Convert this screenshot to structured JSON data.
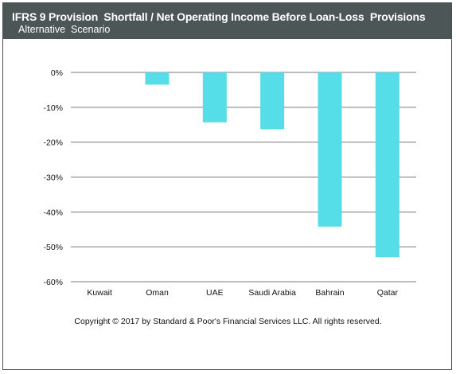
{
  "header": {
    "title": "IFRS 9 Provision  Shortfall / Net Operating Income Before Loan-Loss  Provisions",
    "subtitle": "Alternative  Scenario"
  },
  "footer": {
    "copyright": "Copyright © 2017 by Standard & Poor's Financial Services LLC. All rights reserved."
  },
  "colors": {
    "bar": "#55dde8",
    "header_bg": "#4d5657",
    "gridline": "#7a7a7a"
  },
  "chart_data": {
    "type": "bar",
    "categories": [
      "Kuwait",
      "Oman",
      "UAE",
      "Saudi Arabia",
      "Bahrain",
      "Qatar"
    ],
    "values": [
      0,
      -3.5,
      -14.3,
      -16.3,
      -44.2,
      -53.0
    ],
    "yticks": [
      0,
      -10,
      -20,
      -30,
      -40,
      -50,
      -60
    ],
    "tick_labels": [
      "0%",
      "-10%",
      "-20%",
      "-30%",
      "-40%",
      "-50%",
      "-60%"
    ],
    "ylim": [
      -60,
      0
    ],
    "grid": true,
    "legend": "none"
  }
}
